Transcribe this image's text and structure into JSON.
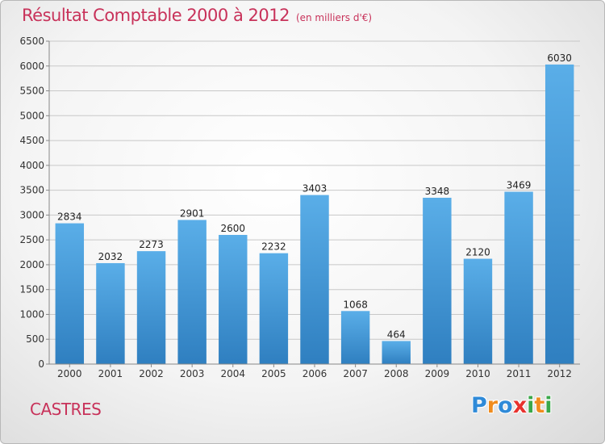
{
  "header": {
    "title": "Résultat Comptable 2000 à 2012",
    "subtitle": "(en milliers d'€)"
  },
  "city": "CASTRES",
  "logo": {
    "text": "Proxiti",
    "letters": [
      {
        "ch": "P",
        "color": "#2f8ad8"
      },
      {
        "ch": "r",
        "color": "#f08c1e"
      },
      {
        "ch": "o",
        "color": "#2f8ad8"
      },
      {
        "ch": "x",
        "color": "#e8322e"
      },
      {
        "ch": "i",
        "color": "#3aa84a"
      },
      {
        "ch": "t",
        "color": "#f08c1e"
      },
      {
        "ch": "i",
        "color": "#3aa84a"
      }
    ]
  },
  "colors": {
    "title": "#c8325a",
    "bar_top": "#5aaee8",
    "bar_bottom": "#2f7fc0",
    "grid": "#c8c8c8"
  },
  "chart_data": {
    "type": "bar",
    "title": "Résultat Comptable 2000 à 2012",
    "xlabel": "",
    "ylabel": "",
    "categories": [
      "2000",
      "2001",
      "2002",
      "2003",
      "2004",
      "2005",
      "2006",
      "2007",
      "2008",
      "2009",
      "2010",
      "2011",
      "2012"
    ],
    "values": [
      2834,
      2032,
      2273,
      2901,
      2600,
      2232,
      3403,
      1068,
      464,
      3348,
      2120,
      3469,
      6030
    ],
    "ylim": [
      0,
      6500
    ],
    "yticks": [
      0,
      500,
      1000,
      1500,
      2000,
      2500,
      3000,
      3500,
      4000,
      4500,
      5000,
      5500,
      6000,
      6500
    ],
    "grid": true,
    "legend": "none"
  }
}
